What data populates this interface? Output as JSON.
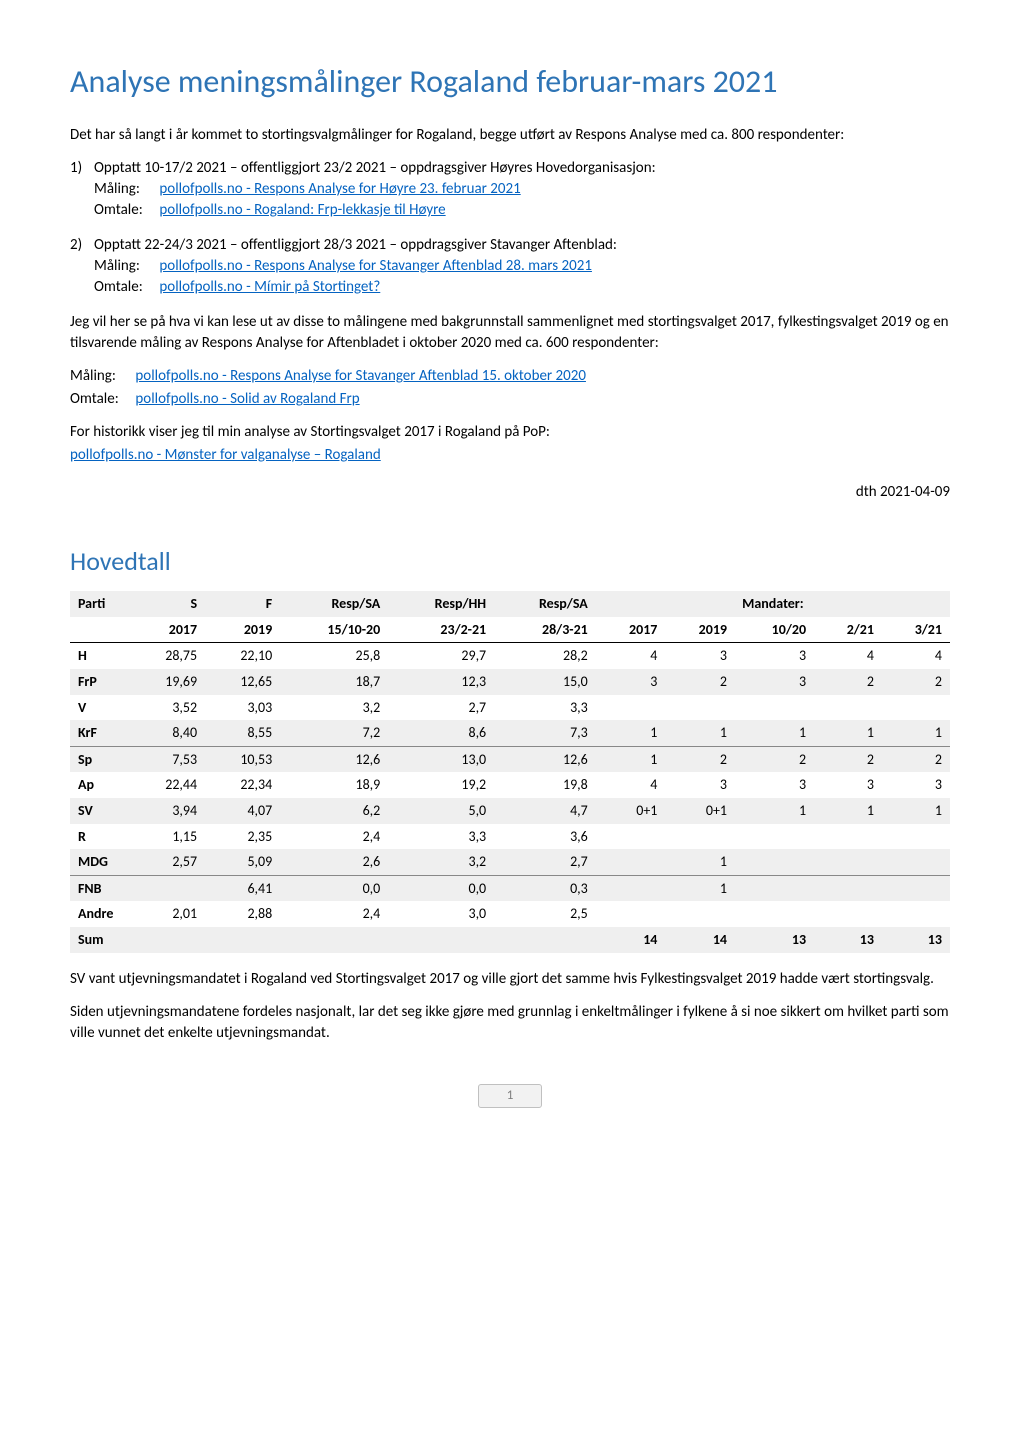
{
  "title": "Analyse meningsmålinger Rogaland februar-mars 2021",
  "intro": "Det har så langt i år kommet to stortingsvalgmålinger for Rogaland, begge utført av Respons Analyse med ca. 800 respondenter:",
  "items": [
    {
      "num": "1)",
      "desc": "Opptatt 10-17/2 2021 – offentliggjort 23/2 2021 – oppdragsgiver Høyres Hovedorganisasjon:",
      "maling_label": "Måling:",
      "maling_link": "pollofpolls.no - Respons Analyse for Høyre 23. februar 2021",
      "omtale_label": "Omtale:",
      "omtale_link": "pollofpolls.no - Rogaland: Frp-lekkasje til Høyre"
    },
    {
      "num": "2)",
      "desc": "Opptatt 22-24/3 2021 – offentliggjort 28/3 2021 – oppdragsgiver Stavanger Aftenblad:",
      "maling_label": "Måling:",
      "maling_link": "pollofpolls.no - Respons Analyse for Stavanger Aftenblad 28. mars 2021",
      "omtale_label": "Omtale:",
      "omtale_link": "pollofpolls.no - Mímir på Stortinget?"
    }
  ],
  "para2": "Jeg vil her se på hva vi kan lese ut av disse to målingene med bakgrunnstall sammenlignet med stortingsvalget 2017, fylkestingsvalget 2019 og en tilsvarende måling av Respons Analyse for Aftenbladet i oktober 2020 med ca. 600 respondenter:",
  "maling3_label": "Måling:",
  "maling3_link": "pollofpolls.no - Respons Analyse for Stavanger Aftenblad 15. oktober 2020",
  "omtale3_label": "Omtale:",
  "omtale3_link": "pollofpolls.no - Solid av Rogaland Frp",
  "para3": "For historikk viser jeg til min analyse av Stortingsvalget 2017 i Rogaland på PoP:",
  "para3_link": "pollofpolls.no - Mønster for valganalyse – Rogaland",
  "date": "dth 2021-04-09",
  "section2_title": "Hovedtall",
  "table": {
    "head1": [
      "Parti",
      "S",
      "F",
      "Resp/SA",
      "Resp/HH",
      "Resp/SA",
      "Mandater:"
    ],
    "head2": [
      "",
      "2017",
      "2019",
      "15/10-20",
      "23/2-21",
      "28/3-21",
      "2017",
      "2019",
      "10/20",
      "2/21",
      "3/21"
    ],
    "rows": [
      {
        "p": "H",
        "v": [
          "28,75",
          "22,10",
          "25,8",
          "29,7",
          "28,2",
          "4",
          "3",
          "3",
          "4",
          "4"
        ],
        "shade": false
      },
      {
        "p": "FrP",
        "v": [
          "19,69",
          "12,65",
          "18,7",
          "12,3",
          "15,0",
          "3",
          "2",
          "3",
          "2",
          "2"
        ],
        "shade": true
      },
      {
        "p": "V",
        "v": [
          "3,52",
          "3,03",
          "3,2",
          "2,7",
          "3,3",
          "",
          "",
          "",
          "",
          ""
        ],
        "shade": false
      },
      {
        "p": "KrF",
        "v": [
          "8,40",
          "8,55",
          "7,2",
          "8,6",
          "7,3",
          "1",
          "1",
          "1",
          "1",
          "1"
        ],
        "shade": true
      },
      {
        "p": "Sp",
        "v": [
          "7,53",
          "10,53",
          "12,6",
          "13,0",
          "12,6",
          "1",
          "2",
          "2",
          "2",
          "2"
        ],
        "shade": true,
        "topborder": true
      },
      {
        "p": "Ap",
        "v": [
          "22,44",
          "22,34",
          "18,9",
          "19,2",
          "19,8",
          "4",
          "3",
          "3",
          "3",
          "3"
        ],
        "shade": false
      },
      {
        "p": "SV",
        "v": [
          "3,94",
          "4,07",
          "6,2",
          "5,0",
          "4,7",
          "0+1",
          "0+1",
          "1",
          "1",
          "1"
        ],
        "shade": true
      },
      {
        "p": "R",
        "v": [
          "1,15",
          "2,35",
          "2,4",
          "3,3",
          "3,6",
          "",
          "",
          "",
          "",
          ""
        ],
        "shade": false
      },
      {
        "p": "MDG",
        "v": [
          "2,57",
          "5,09",
          "2,6",
          "3,2",
          "2,7",
          "",
          "1",
          "",
          "",
          ""
        ],
        "shade": true
      },
      {
        "p": "FNB",
        "v": [
          "",
          "6,41",
          "0,0",
          "0,0",
          "0,3",
          "",
          "1",
          "",
          "",
          ""
        ],
        "shade": true,
        "topborder": true
      },
      {
        "p": "Andre",
        "v": [
          "2,01",
          "2,88",
          "2,4",
          "3,0",
          "2,5",
          "",
          "",
          "",
          "",
          ""
        ],
        "shade": false
      },
      {
        "p": "Sum",
        "v": [
          "",
          "",
          "",
          "",
          "",
          "14",
          "14",
          "13",
          "13",
          "13"
        ],
        "shade": true,
        "sum": true
      }
    ]
  },
  "para4": "SV vant utjevningsmandatet i Rogaland ved Stortingsvalget 2017 og ville gjort det samme hvis Fylkestingsvalget 2019 hadde vært stortingsvalg.",
  "para5": "Siden utjevningsmandatene fordeles nasjonalt, lar det seg ikke gjøre med grunnlag i enkeltmålinger i fylkene å si noe sikkert om hvilket parti som ville vunnet det enkelte utjevningsmandat.",
  "page_number": "1",
  "colors": {
    "heading": "#2e74b5",
    "link": "#0563c1",
    "text": "#000000",
    "shade": "#efefef",
    "pagebox_bg": "#f2f2f2",
    "pagebox_border": "#c0c0c0",
    "pagebox_text": "#7f7f7f"
  }
}
